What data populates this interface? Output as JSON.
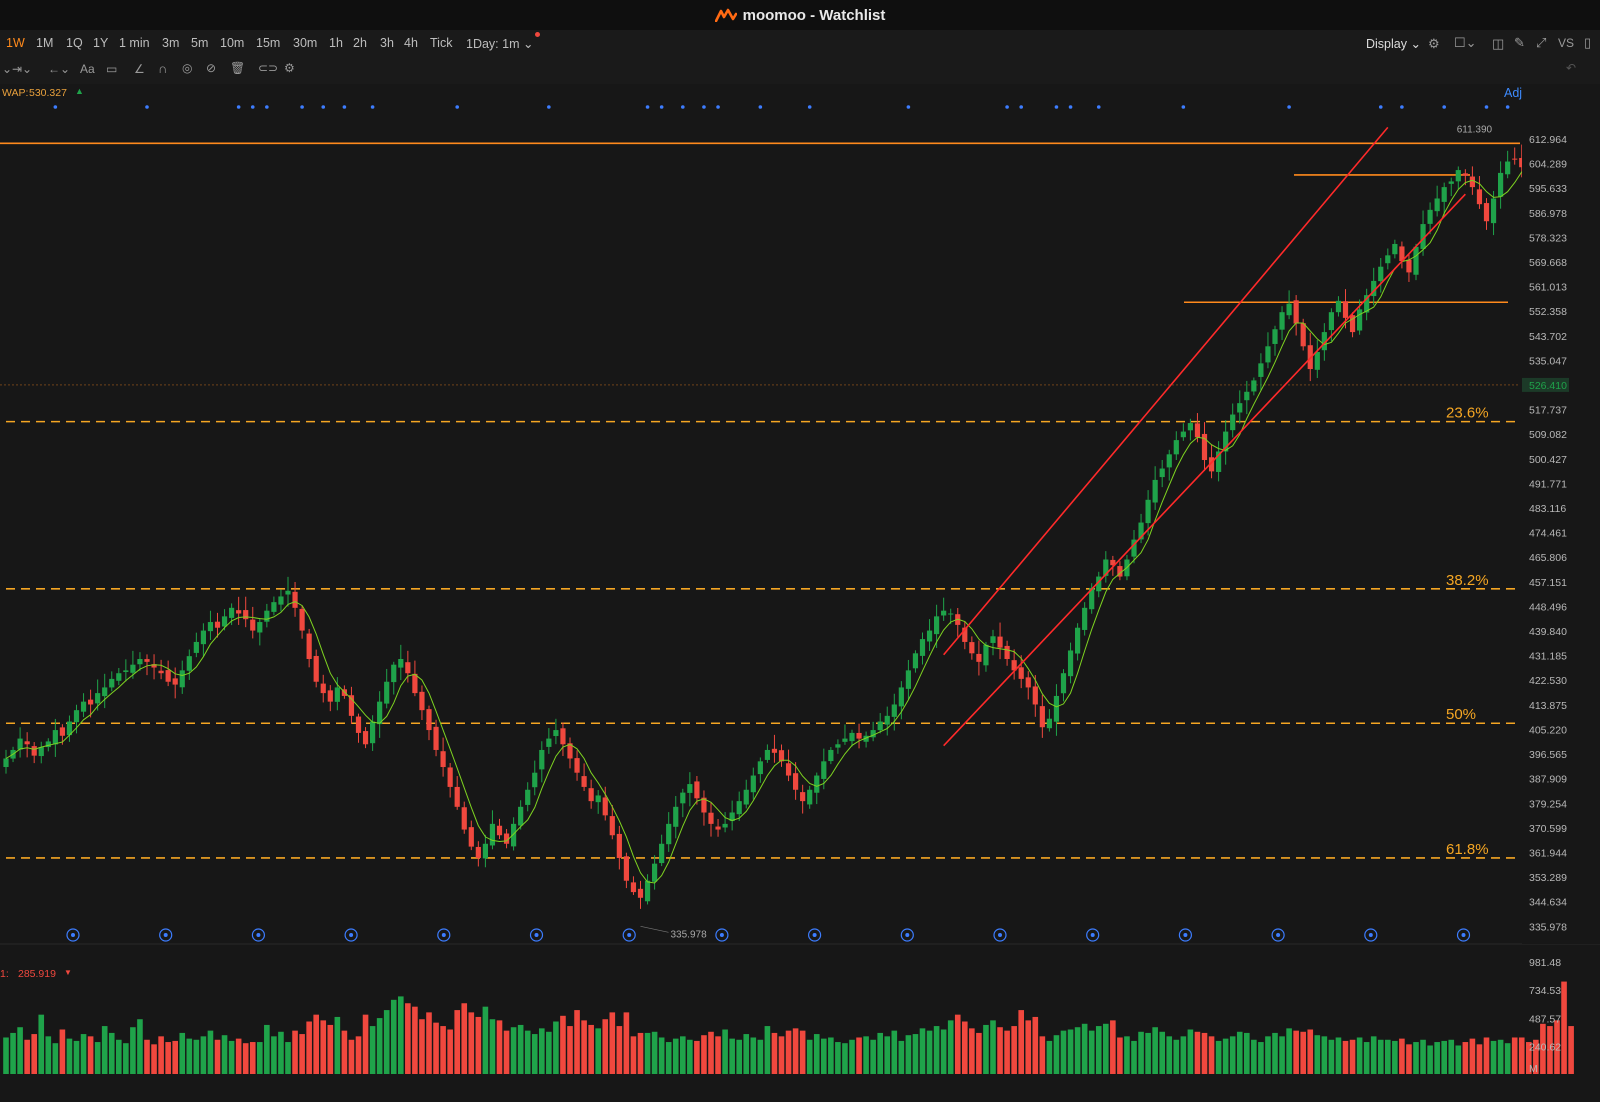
{
  "window": {
    "title": "moomoo - Watchlist"
  },
  "periods": [
    "1W",
    "1M",
    "1Q",
    "1Y",
    "1 min",
    "3m",
    "5m",
    "10m",
    "15m",
    "30m",
    "1h",
    "2h",
    "3h",
    "4h",
    "Tick",
    "1Day: 1m"
  ],
  "active_period": "1W",
  "toolbar": {
    "display_label": "Display",
    "right_label": "VS",
    "adjusted_label": "Adjustec"
  },
  "indicators": {
    "vwap_label": "WAP:",
    "vwap_value": "530.327",
    "vol_label": "1:",
    "vol_value": "285.919"
  },
  "colors": {
    "up": "#1fa34a",
    "down": "#f0483e",
    "accent": "#ff8a1c",
    "fib": "#f5a623",
    "channel": "#ff2a2a",
    "ma": "#7ed321",
    "event_dot": "#3d7dff"
  },
  "price_axis": {
    "labels": [
      "612.964",
      "604.289",
      "595.633",
      "586.978",
      "578.323",
      "569.668",
      "561.013",
      "552.358",
      "543.702",
      "535.047",
      "526.410",
      "517.737",
      "509.082",
      "500.427",
      "491.771",
      "483.116",
      "474.461",
      "465.806",
      "457.151",
      "448.496",
      "439.840",
      "431.185",
      "422.530",
      "413.875",
      "405.220",
      "396.565",
      "387.909",
      "379.254",
      "370.599",
      "361.944",
      "353.289",
      "344.634",
      "335.978"
    ],
    "current_price": "526.410"
  },
  "volume_axis": {
    "labels": [
      "981.48",
      "734.53",
      "487.57",
      "240.62",
      "M"
    ]
  },
  "fib_levels": [
    {
      "label": "23.6%",
      "price": 513.5
    },
    {
      "label": "38.2%",
      "price": 454.7
    },
    {
      "label": "50%",
      "price": 407.4
    },
    {
      "label": "61.8%",
      "price": 360.0
    }
  ],
  "horizontal_lines": [
    {
      "price": 611.4,
      "span": "full"
    },
    {
      "price": 600.3,
      "span": "short"
    },
    {
      "price": 555.5,
      "span": "mid"
    }
  ],
  "annotations": {
    "high_label": "611.390",
    "low_label": "335.978"
  },
  "chart_data": {
    "type": "candlestick",
    "title": "",
    "y_range": [
      331.5,
      617.5
    ],
    "high": 611.39,
    "low": 335.978,
    "last": 526.41,
    "vwap": 530.327,
    "fib_levels": {
      "23.6%": 513.5,
      "38.2%": 454.7,
      "50%": 407.4,
      "61.8%": 360.0
    },
    "channel": {
      "upper": [
        {
          "candle": 133,
          "price": 431.5
        },
        {
          "candle": 196,
          "price": 617.0
        }
      ],
      "lower": [
        {
          "candle": 133,
          "price": 399.5
        },
        {
          "candle": 207,
          "price": 593.5
        }
      ]
    },
    "closes": [
      395,
      398,
      402,
      400,
      396,
      399,
      401,
      405,
      403,
      408,
      412,
      415,
      414,
      418,
      420,
      423,
      425,
      426,
      428,
      430,
      429,
      427,
      425,
      422,
      421,
      426,
      431,
      436,
      440,
      443,
      441,
      445,
      448,
      446,
      444,
      440,
      443,
      447,
      450,
      452,
      454,
      448,
      440,
      430,
      422,
      418,
      415,
      420,
      417,
      410,
      404,
      400,
      408,
      415,
      422,
      428,
      430,
      425,
      418,
      412,
      405,
      398,
      392,
      385,
      378,
      370,
      364,
      360,
      365,
      372,
      368,
      365,
      372,
      378,
      384,
      390,
      398,
      402,
      405,
      400,
      395,
      390,
      385,
      380,
      382,
      375,
      368,
      360,
      352,
      348,
      346,
      352,
      358,
      365,
      372,
      378,
      383,
      386,
      381,
      376,
      372,
      370,
      372,
      376,
      380,
      384,
      389,
      394,
      398,
      397,
      394,
      389,
      384,
      380,
      384,
      389,
      394,
      398,
      400,
      402,
      404,
      402,
      403,
      405,
      408,
      410,
      414,
      420,
      426,
      432,
      437,
      440,
      445,
      447,
      446,
      442,
      436,
      432,
      429,
      435,
      438,
      434,
      430,
      426,
      423,
      420,
      414,
      406,
      409,
      417,
      425,
      433,
      441,
      448,
      455,
      459,
      465,
      463,
      459,
      465,
      472,
      478,
      486,
      493,
      497,
      502,
      507,
      510,
      513,
      508,
      500,
      496,
      503,
      510,
      516,
      520,
      524,
      528,
      534,
      540,
      546,
      552,
      555,
      548,
      540,
      532,
      538,
      545,
      552,
      556,
      550,
      545,
      553,
      558,
      563,
      568,
      572,
      576,
      570,
      566,
      575,
      583,
      588,
      592,
      596,
      598,
      602,
      600,
      596,
      590,
      584,
      592,
      601,
      605,
      606,
      603,
      596,
      584,
      572,
      562,
      559,
      552,
      538,
      520,
      506,
      515,
      524,
      530
    ]
  },
  "volume_data": [
    320,
    360,
    410,
    300,
    350,
    520,
    330,
    270,
    390,
    310,
    290,
    350,
    330,
    280,
    420,
    360,
    300,
    270,
    410,
    480,
    300,
    260,
    330,
    280,
    290,
    360,
    310,
    300,
    330,
    380,
    300,
    340,
    290,
    310,
    270,
    280,
    280,
    430,
    330,
    370,
    280,
    380,
    350,
    460,
    520,
    470,
    430,
    500,
    380,
    300,
    330,
    520,
    420,
    490,
    560,
    650,
    680,
    620,
    590,
    480,
    540,
    450,
    420,
    390,
    560,
    620,
    540,
    500,
    590,
    480,
    470,
    380,
    410,
    430,
    380,
    350,
    400,
    370,
    460,
    510,
    420,
    560,
    470,
    430,
    400,
    480,
    540,
    420,
    540,
    330,
    360,
    360,
    370,
    320,
    280,
    310,
    330,
    300,
    290,
    340,
    370,
    330,
    390,
    310,
    300,
    350,
    320,
    300,
    420,
    360,
    330,
    380,
    400,
    380,
    300,
    350,
    310,
    320,
    280,
    270,
    300,
    320,
    330,
    300,
    360,
    330,
    380,
    290,
    340,
    350,
    400,
    380,
    420,
    390,
    470,
    520,
    460,
    400,
    360,
    430,
    470,
    410,
    380,
    420,
    560,
    470,
    500,
    330,
    290,
    340,
    380,
    390,
    410,
    440,
    380,
    420,
    440,
    470,
    320,
    330,
    290,
    370,
    360,
    410,
    370,
    330,
    300,
    330,
    390,
    370,
    360,
    330,
    290,
    310,
    330,
    370,
    360,
    300,
    280,
    330,
    360,
    330,
    400,
    380,
    370,
    390,
    340,
    330,
    300,
    320,
    290,
    300,
    320,
    280,
    330,
    300,
    300,
    290,
    310,
    260,
    280,
    300,
    250,
    280,
    290,
    300,
    250,
    280,
    310,
    260,
    320,
    290,
    300,
    270,
    320,
    320,
    280,
    300,
    440,
    420,
    470,
    810,
    420
  ]
}
